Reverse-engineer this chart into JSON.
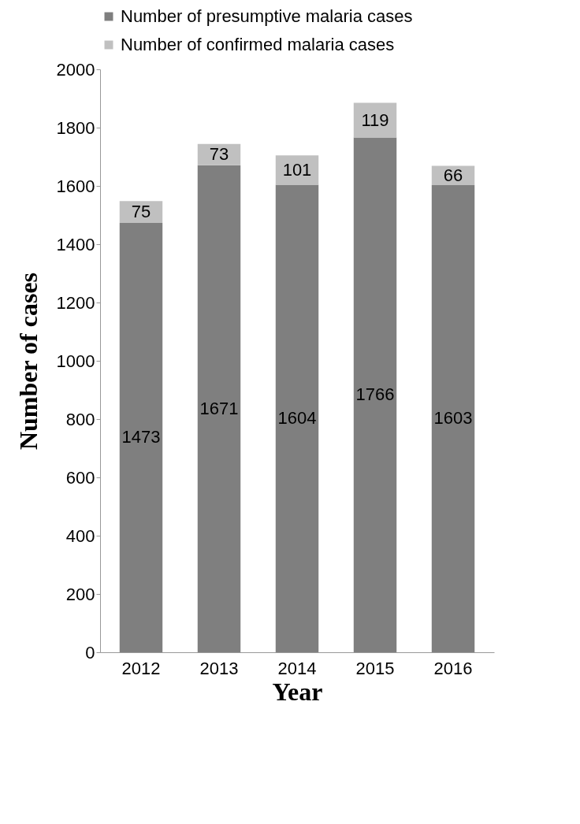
{
  "chart_data": {
    "type": "bar",
    "stacked": true,
    "xlabel": "Year",
    "ylabel": "Number of cases",
    "categories": [
      "2012",
      "2013",
      "2014",
      "2015",
      "2016"
    ],
    "series": [
      {
        "name": "Number of presumptive malaria cases",
        "color": "#7f7f7f",
        "values": [
          1473,
          1671,
          1604,
          1766,
          1603
        ]
      },
      {
        "name": "Number of confirmed malaria cases",
        "color": "#c0c0c0",
        "values": [
          75,
          73,
          101,
          119,
          66
        ]
      }
    ],
    "ylim": [
      0,
      2000
    ],
    "yticks": [
      0,
      200,
      400,
      600,
      800,
      1000,
      1200,
      1400,
      1600,
      1800,
      2000
    ],
    "data_labels": true,
    "legend": "top left",
    "grid": false
  }
}
